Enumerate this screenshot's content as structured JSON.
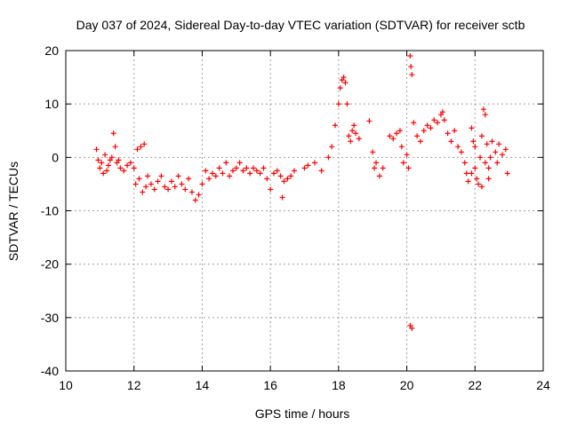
{
  "chart_data": {
    "type": "scatter",
    "title": "Day 037 of 2024, Sidereal Day-to-day VTEC variation (SDTVAR) for receiver sctb",
    "xlabel": "GPS time / hours",
    "ylabel": "SDTVAR / TECUs",
    "xlim": [
      10,
      24
    ],
    "ylim": [
      -40,
      20
    ],
    "xticks": [
      10,
      12,
      14,
      16,
      18,
      20,
      22,
      24
    ],
    "xtick_labels": [
      "10",
      "12",
      "14",
      "16",
      "18",
      "20",
      "22",
      "24"
    ],
    "yticks": [
      -40,
      -30,
      -20,
      -10,
      0,
      10,
      20
    ],
    "ytick_labels": [
      "-40",
      "-30",
      "-20",
      "-10",
      "0",
      "10",
      "20"
    ],
    "grid": true,
    "marker": "+",
    "color": "#ff0000",
    "series": [
      {
        "name": "SDTVAR",
        "points": [
          [
            10.9,
            1.5
          ],
          [
            10.95,
            -0.5
          ],
          [
            11.0,
            -2.0
          ],
          [
            11.05,
            -1.0
          ],
          [
            11.1,
            -3.0
          ],
          [
            11.15,
            0.5
          ],
          [
            11.2,
            -2.5
          ],
          [
            11.25,
            -1.5
          ],
          [
            11.3,
            -0.5
          ],
          [
            11.35,
            0.0
          ],
          [
            11.4,
            4.5
          ],
          [
            11.45,
            2.0
          ],
          [
            11.5,
            -1.0
          ],
          [
            11.55,
            -0.5
          ],
          [
            11.6,
            -2.0
          ],
          [
            11.7,
            -2.5
          ],
          [
            11.8,
            -1.5
          ],
          [
            11.9,
            -1.0
          ],
          [
            12.0,
            -2.0
          ],
          [
            12.05,
            -5.0
          ],
          [
            12.1,
            1.5
          ],
          [
            12.15,
            -4.0
          ],
          [
            12.2,
            2.0
          ],
          [
            12.25,
            -6.5
          ],
          [
            12.3,
            2.5
          ],
          [
            12.35,
            -5.5
          ],
          [
            12.4,
            -3.5
          ],
          [
            12.5,
            -5.0
          ],
          [
            12.6,
            -6.0
          ],
          [
            12.7,
            -4.5
          ],
          [
            12.8,
            -3.5
          ],
          [
            12.9,
            -5.5
          ],
          [
            13.0,
            -6.0
          ],
          [
            13.1,
            -4.5
          ],
          [
            13.2,
            -5.5
          ],
          [
            13.3,
            -3.5
          ],
          [
            13.4,
            -5.0
          ],
          [
            13.5,
            -6.0
          ],
          [
            13.6,
            -4.0
          ],
          [
            13.7,
            -6.5
          ],
          [
            13.8,
            -8.0
          ],
          [
            13.9,
            -7.0
          ],
          [
            14.0,
            -5.0
          ],
          [
            14.1,
            -2.5
          ],
          [
            14.2,
            -4.0
          ],
          [
            14.3,
            -3.0
          ],
          [
            14.4,
            -3.5
          ],
          [
            14.5,
            -2.0
          ],
          [
            14.6,
            -3.0
          ],
          [
            14.7,
            -1.0
          ],
          [
            14.8,
            -3.5
          ],
          [
            14.9,
            -2.5
          ],
          [
            15.0,
            -2.0
          ],
          [
            15.1,
            -1.0
          ],
          [
            15.2,
            -2.5
          ],
          [
            15.3,
            -2.0
          ],
          [
            15.4,
            -3.0
          ],
          [
            15.5,
            -2.0
          ],
          [
            15.6,
            -2.5
          ],
          [
            15.7,
            -3.0
          ],
          [
            15.8,
            -2.0
          ],
          [
            15.9,
            -4.0
          ],
          [
            16.0,
            -6.0
          ],
          [
            16.1,
            -3.0
          ],
          [
            16.2,
            -2.5
          ],
          [
            16.3,
            -3.5
          ],
          [
            16.35,
            -7.5
          ],
          [
            16.4,
            -4.5
          ],
          [
            16.5,
            -4.0
          ],
          [
            16.6,
            -3.5
          ],
          [
            16.7,
            -2.5
          ],
          [
            17.0,
            -2.0
          ],
          [
            17.1,
            -1.5
          ],
          [
            17.3,
            -1.0
          ],
          [
            17.5,
            -2.5
          ],
          [
            17.7,
            0.0
          ],
          [
            17.8,
            2.0
          ],
          [
            17.9,
            6.0
          ],
          [
            18.0,
            10.0
          ],
          [
            18.05,
            13.0
          ],
          [
            18.1,
            14.5
          ],
          [
            18.15,
            15.0
          ],
          [
            18.2,
            14.0
          ],
          [
            18.25,
            10.0
          ],
          [
            18.3,
            4.0
          ],
          [
            18.35,
            3.0
          ],
          [
            18.4,
            5.0
          ],
          [
            18.45,
            6.0
          ],
          [
            18.5,
            4.5
          ],
          [
            18.6,
            3.5
          ],
          [
            18.9,
            6.8
          ],
          [
            19.0,
            1.0
          ],
          [
            19.05,
            -2.0
          ],
          [
            19.1,
            -1.0
          ],
          [
            19.2,
            -3.5
          ],
          [
            19.3,
            -2.0
          ],
          [
            19.5,
            4.0
          ],
          [
            19.6,
            3.5
          ],
          [
            19.7,
            4.5
          ],
          [
            19.8,
            5.0
          ],
          [
            19.85,
            2.0
          ],
          [
            19.9,
            -1.0
          ],
          [
            20.0,
            0.5
          ],
          [
            20.05,
            -2.0
          ],
          [
            20.1,
            19.0
          ],
          [
            20.12,
            17.0
          ],
          [
            20.15,
            15.5
          ],
          [
            20.1,
            -31.5
          ],
          [
            20.15,
            -32.0
          ],
          [
            20.2,
            6.5
          ],
          [
            20.3,
            4.0
          ],
          [
            20.4,
            3.0
          ],
          [
            20.5,
            5.0
          ],
          [
            20.6,
            6.0
          ],
          [
            20.7,
            5.5
          ],
          [
            20.8,
            7.0
          ],
          [
            20.9,
            6.5
          ],
          [
            21.0,
            8.0
          ],
          [
            21.05,
            8.5
          ],
          [
            21.1,
            7.0
          ],
          [
            21.2,
            4.5
          ],
          [
            21.3,
            3.0
          ],
          [
            21.4,
            5.0
          ],
          [
            21.5,
            2.0
          ],
          [
            21.6,
            1.0
          ],
          [
            21.7,
            -1.0
          ],
          [
            21.75,
            -3.0
          ],
          [
            21.8,
            -4.5
          ],
          [
            21.9,
            -3.0
          ],
          [
            22.0,
            -2.0
          ],
          [
            22.05,
            -4.0
          ],
          [
            22.1,
            -5.0
          ],
          [
            22.15,
            0.0
          ],
          [
            22.2,
            4.0
          ],
          [
            22.25,
            9.0
          ],
          [
            22.3,
            8.0
          ],
          [
            22.35,
            2.5
          ],
          [
            22.4,
            -2.0
          ],
          [
            22.45,
            0.0
          ],
          [
            22.5,
            3.0
          ],
          [
            22.6,
            1.0
          ],
          [
            22.65,
            -1.0
          ],
          [
            22.7,
            2.5
          ],
          [
            22.8,
            0.5
          ],
          [
            22.9,
            1.5
          ],
          [
            22.95,
            -3.0
          ],
          [
            22.3,
            -1.0
          ],
          [
            22.2,
            -5.5
          ],
          [
            22.4,
            -4.0
          ],
          [
            21.9,
            5.5
          ],
          [
            21.95,
            3.0
          ],
          [
            22.0,
            2.0
          ]
        ]
      }
    ]
  }
}
